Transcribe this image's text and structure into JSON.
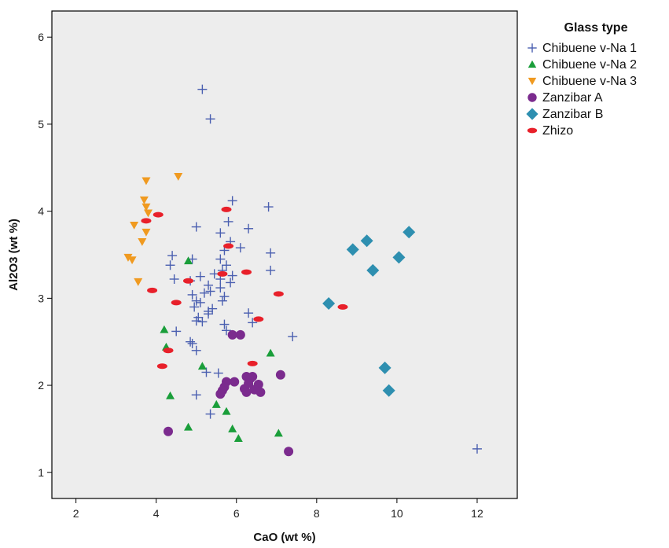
{
  "chart_data": {
    "type": "scatter",
    "xlabel": "CaO (wt %)",
    "ylabel": "Al2O3 (wt %)",
    "xlim": [
      1.4,
      13.0
    ],
    "ylim": [
      0.7,
      6.3
    ],
    "x_ticks": [
      2,
      4,
      6,
      8,
      10,
      12
    ],
    "y_ticks": [
      1,
      2,
      3,
      4,
      5,
      6
    ],
    "grid": false,
    "background_color": "#ededed",
    "legend": {
      "title": "Glass type",
      "placement": "outside-top-right"
    },
    "series": [
      {
        "name": "Chibuene v-Na 1",
        "marker": "plus",
        "color": "#4a5fb0",
        "points": [
          [
            5.15,
            5.4
          ],
          [
            5.35,
            5.06
          ],
          [
            5.9,
            4.12
          ],
          [
            6.8,
            4.05
          ],
          [
            5.8,
            3.88
          ],
          [
            5.0,
            3.82
          ],
          [
            6.3,
            3.8
          ],
          [
            5.6,
            3.75
          ],
          [
            5.85,
            3.65
          ],
          [
            6.1,
            3.58
          ],
          [
            5.7,
            3.55
          ],
          [
            6.85,
            3.52
          ],
          [
            4.4,
            3.49
          ],
          [
            5.6,
            3.45
          ],
          [
            4.9,
            3.45
          ],
          [
            4.35,
            3.38
          ],
          [
            5.75,
            3.38
          ],
          [
            5.65,
            3.32
          ],
          [
            6.85,
            3.32
          ],
          [
            5.45,
            3.28
          ],
          [
            5.9,
            3.26
          ],
          [
            5.1,
            3.25
          ],
          [
            4.45,
            3.22
          ],
          [
            5.6,
            3.22
          ],
          [
            4.85,
            3.2
          ],
          [
            5.3,
            3.15
          ],
          [
            5.85,
            3.18
          ],
          [
            5.6,
            3.12
          ],
          [
            5.35,
            3.08
          ],
          [
            5.2,
            3.06
          ],
          [
            4.9,
            3.04
          ],
          [
            5.7,
            3.02
          ],
          [
            5.65,
            2.97
          ],
          [
            5.0,
            2.97
          ],
          [
            5.1,
            2.95
          ],
          [
            4.95,
            2.9
          ],
          [
            5.4,
            2.88
          ],
          [
            5.3,
            2.85
          ],
          [
            6.3,
            2.83
          ],
          [
            5.3,
            2.82
          ],
          [
            5.05,
            2.78
          ],
          [
            5.0,
            2.74
          ],
          [
            5.15,
            2.73
          ],
          [
            6.4,
            2.72
          ],
          [
            5.7,
            2.7
          ],
          [
            5.75,
            2.63
          ],
          [
            4.5,
            2.62
          ],
          [
            7.4,
            2.56
          ],
          [
            4.85,
            2.5
          ],
          [
            4.9,
            2.48
          ],
          [
            5.0,
            2.4
          ],
          [
            5.25,
            2.15
          ],
          [
            5.55,
            2.14
          ],
          [
            5.0,
            1.89
          ],
          [
            5.35,
            1.67
          ],
          [
            12.0,
            1.27
          ]
        ]
      },
      {
        "name": "Chibuene v-Na 2",
        "marker": "triangle-up",
        "color": "#1a9e3a",
        "points": [
          [
            4.8,
            3.43
          ],
          [
            4.2,
            2.64
          ],
          [
            4.25,
            2.44
          ],
          [
            6.85,
            2.37
          ],
          [
            5.15,
            2.22
          ],
          [
            6.35,
            2.01
          ],
          [
            4.35,
            1.88
          ],
          [
            5.5,
            1.78
          ],
          [
            5.75,
            1.7
          ],
          [
            4.8,
            1.52
          ],
          [
            5.9,
            1.5
          ],
          [
            7.05,
            1.45
          ],
          [
            6.05,
            1.39
          ]
        ]
      },
      {
        "name": "Chibuene v-Na 3",
        "marker": "triangle-down",
        "color": "#f09a20",
        "points": [
          [
            4.55,
            4.4
          ],
          [
            3.75,
            4.35
          ],
          [
            3.7,
            4.13
          ],
          [
            3.75,
            4.05
          ],
          [
            3.8,
            3.98
          ],
          [
            3.45,
            3.84
          ],
          [
            3.75,
            3.76
          ],
          [
            3.65,
            3.65
          ],
          [
            3.3,
            3.47
          ],
          [
            3.4,
            3.44
          ],
          [
            3.55,
            3.19
          ]
        ]
      },
      {
        "name": "Zanzibar A",
        "marker": "circle",
        "color": "#7b2b8e",
        "points": [
          [
            5.9,
            2.58
          ],
          [
            6.1,
            2.58
          ],
          [
            7.1,
            2.12
          ],
          [
            6.25,
            2.1
          ],
          [
            6.35,
            2.08
          ],
          [
            6.4,
            2.1
          ],
          [
            5.75,
            2.04
          ],
          [
            5.95,
            2.04
          ],
          [
            6.3,
            2.02
          ],
          [
            6.55,
            2.01
          ],
          [
            5.7,
            1.98
          ],
          [
            6.2,
            1.96
          ],
          [
            6.45,
            1.95
          ],
          [
            5.65,
            1.94
          ],
          [
            5.6,
            1.9
          ],
          [
            6.25,
            1.92
          ],
          [
            6.6,
            1.92
          ],
          [
            4.3,
            1.47
          ],
          [
            7.3,
            1.24
          ]
        ]
      },
      {
        "name": "Zanzibar B",
        "marker": "diamond",
        "color": "#2e8fb0",
        "points": [
          [
            10.3,
            3.76
          ],
          [
            9.25,
            3.66
          ],
          [
            8.9,
            3.56
          ],
          [
            10.05,
            3.47
          ],
          [
            9.4,
            3.32
          ],
          [
            8.3,
            2.94
          ],
          [
            9.7,
            2.2
          ],
          [
            9.8,
            1.94
          ]
        ]
      },
      {
        "name": "Zhizo",
        "marker": "ellipse",
        "color": "#e8202a",
        "points": [
          [
            4.05,
            3.96
          ],
          [
            5.75,
            4.02
          ],
          [
            3.75,
            3.89
          ],
          [
            5.8,
            3.6
          ],
          [
            6.25,
            3.3
          ],
          [
            5.65,
            3.28
          ],
          [
            4.8,
            3.2
          ],
          [
            3.9,
            3.09
          ],
          [
            7.05,
            3.05
          ],
          [
            4.5,
            2.95
          ],
          [
            8.65,
            2.9
          ],
          [
            6.55,
            2.76
          ],
          [
            4.3,
            2.4
          ],
          [
            6.4,
            2.25
          ],
          [
            4.15,
            2.22
          ]
        ]
      }
    ]
  }
}
